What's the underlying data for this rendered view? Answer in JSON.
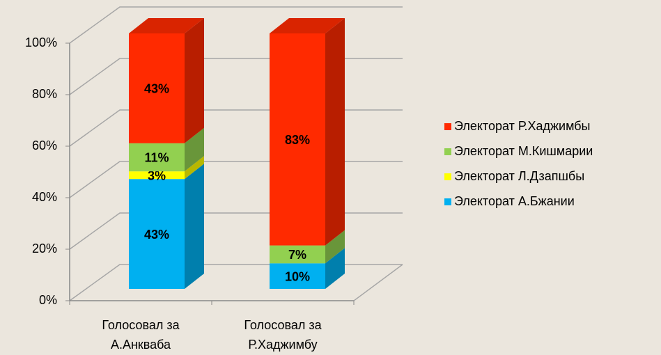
{
  "chart_data": {
    "type": "bar3d_stacked",
    "categories": [
      "Голосовал за А.Анкваба",
      "Голосовал за Р.Хаджимбу"
    ],
    "series": [
      {
        "name": "Электорат А.Бжании",
        "color": "#00b0f0",
        "values": [
          43,
          10
        ],
        "value_labels": [
          "43%",
          "10%"
        ]
      },
      {
        "name": "Электорат Л.Дзапшбы",
        "color": "#ffff00",
        "values": [
          3,
          null
        ],
        "value_labels": [
          "3%",
          null
        ]
      },
      {
        "name": "Электорат М.Кишмарии",
        "color": "#92d050",
        "values": [
          11,
          7
        ],
        "value_labels": [
          "11%",
          "7%"
        ]
      },
      {
        "name": "Электорат Р.Хаджимбы",
        "color": "#ff2a00",
        "values": [
          43,
          83
        ],
        "value_labels": [
          "43%",
          "83%"
        ]
      }
    ],
    "ylim": [
      0,
      100
    ],
    "yticks": [
      {
        "value": 0,
        "label": "0%"
      },
      {
        "value": 20,
        "label": "20%"
      },
      {
        "value": 40,
        "label": "40%"
      },
      {
        "value": 60,
        "label": "60%"
      },
      {
        "value": 80,
        "label": "80%"
      },
      {
        "value": 100,
        "label": "100%"
      }
    ],
    "grid": true,
    "legend": "right"
  }
}
